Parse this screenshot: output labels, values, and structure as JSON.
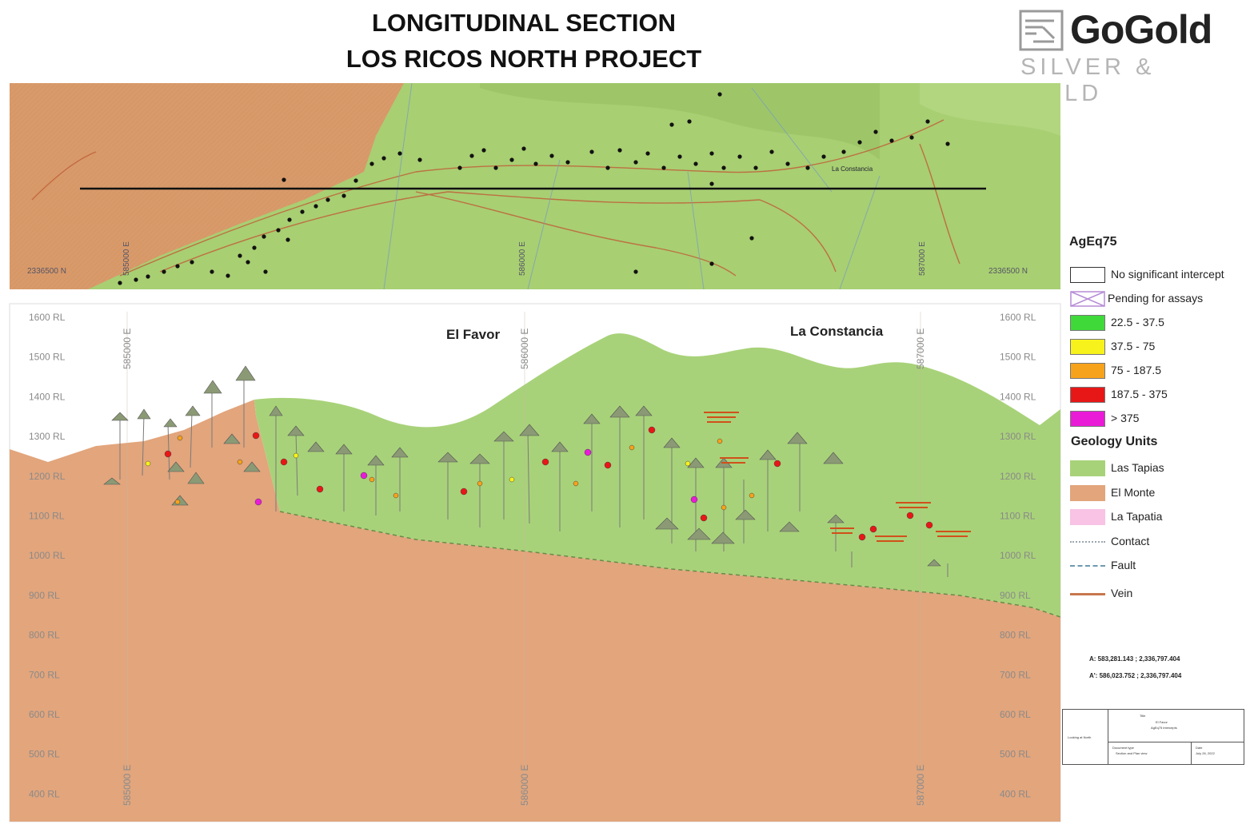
{
  "title": {
    "line1": "LONGITUDINAL SECTION",
    "line2": "LOS RICOS NORTH PROJECT"
  },
  "logo": {
    "name": "GoGold",
    "tagline": "SILVER & GOLD",
    "colors": {
      "word": "#222222",
      "tagline": "#b5b5b5"
    }
  },
  "plan_view": {
    "northing_left": "2336500 N",
    "northing_right": "2336500 N",
    "easting_labels": [
      "585000 E",
      "586000 E",
      "587000 E"
    ],
    "place_label": "La Constancia",
    "colors": {
      "las_tapias": "#a8cf72",
      "el_monte": "#d99a6a",
      "section_line": "#111111",
      "drill_collar": "#111111",
      "vein": "#c0603a"
    }
  },
  "section_view": {
    "rl_labels": [
      "1600 RL",
      "1500 RL",
      "1400 RL",
      "1300 RL",
      "1200 RL",
      "1100 RL",
      "1000 RL",
      "900 RL",
      "800 RL",
      "700 RL",
      "600 RL",
      "500 RL",
      "400 RL"
    ],
    "easting_labels": [
      "585000 E",
      "586000 E",
      "587000 E"
    ],
    "area_labels": [
      "El Favor",
      "La Constancia"
    ],
    "colors": {
      "las_tapias": "#a8d279",
      "el_monte": "#e2a57c",
      "contact_line": "#6a8a4a"
    }
  },
  "legend": {
    "assay_title": "AgEq75",
    "assay_items": [
      {
        "label": "No significant intercept",
        "color": "#ffffff"
      },
      {
        "label": "Pending for assays",
        "color": "#ffffff",
        "icon": "cross-box-icon"
      },
      {
        "label": "22.5 - 37.5",
        "color": "#3fd93a"
      },
      {
        "label": "37.5 - 75",
        "color": "#f7f21b"
      },
      {
        "label": "75 - 187.5",
        "color": "#f7a21b"
      },
      {
        "label": "187.5 - 375",
        "color": "#e81717"
      },
      {
        "label": "> 375",
        "color": "#ea1bd7"
      }
    ],
    "geology_title": "Geology Units",
    "geology_items": [
      {
        "label": "Las Tapias",
        "color": "#a8d279"
      },
      {
        "label": "El Monte",
        "color": "#e2a57c"
      },
      {
        "label": "La Tapatia",
        "color": "#f8c3e4"
      }
    ],
    "line_items": [
      {
        "label": "Contact",
        "color": "#9aa7b0",
        "style": "dotted"
      },
      {
        "label": "Fault",
        "color": "#6f9ab0",
        "style": "dashed"
      },
      {
        "label": "Vein",
        "color": "#c8764c",
        "style": "solid"
      }
    ]
  },
  "section_coordinates": {
    "a": "A: 583,281.143 ; 2,336,797.404",
    "a_prime": "A': 586,023.752 ; 2,336,797.404"
  },
  "title_box": {
    "side_label": "Looking at North",
    "title_label": "Title",
    "title_line1": "El Favor",
    "title_line2": "AgEq75 intercepts",
    "doc_type_label": "Document type",
    "doc_type_value": "Section and Plan view",
    "date_label": "Date",
    "date_value": "July 26, 2022"
  }
}
